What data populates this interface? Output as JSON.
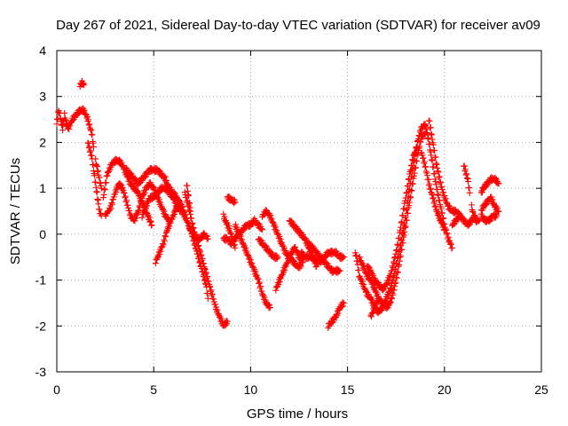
{
  "chart_data": {
    "type": "scatter",
    "title": "Day 267 of 2021, Sidereal Day-to-day VTEC variation (SDTVAR) for receiver av09",
    "xlabel": "GPS time / hours",
    "ylabel": "SDTVAR / TECUs",
    "xlim": [
      0,
      25
    ],
    "ylim": [
      -3,
      4
    ],
    "grid": true,
    "marker": "+",
    "series_color": "#ff0000",
    "xticks": [
      "0",
      "5",
      "10",
      "15",
      "20",
      "25"
    ],
    "yticks": [
      "-3",
      "-2",
      "-1",
      "0",
      "1",
      "2",
      "3",
      "4"
    ],
    "segments": [
      [
        [
          0.0,
          2.4
        ],
        [
          0.1,
          2.7
        ],
        [
          0.2,
          2.5
        ],
        [
          0.3,
          2.3
        ],
        [
          0.4,
          2.6
        ],
        [
          0.5,
          2.4
        ],
        [
          0.6,
          2.3
        ],
        [
          0.8,
          2.5
        ],
        [
          1.0,
          2.6
        ],
        [
          1.2,
          2.7
        ],
        [
          1.4,
          2.7
        ],
        [
          1.6,
          2.5
        ],
        [
          1.8,
          2.2
        ],
        [
          1.9,
          1.9
        ]
      ],
      [
        [
          1.2,
          3.25
        ],
        [
          1.3,
          3.3
        ],
        [
          1.4,
          3.25
        ]
      ],
      [
        [
          1.6,
          2.0
        ],
        [
          1.8,
          1.7
        ],
        [
          1.9,
          1.4
        ],
        [
          2.0,
          1.1
        ],
        [
          2.1,
          0.8
        ],
        [
          2.2,
          0.5
        ],
        [
          2.3,
          0.4
        ]
      ],
      [
        [
          2.0,
          1.6
        ],
        [
          2.1,
          1.4
        ],
        [
          2.2,
          1.2
        ],
        [
          2.3,
          1.0
        ]
      ],
      [
        [
          2.4,
          0.8
        ],
        [
          2.6,
          1.3
        ],
        [
          2.8,
          1.5
        ],
        [
          3.0,
          1.6
        ],
        [
          3.2,
          1.6
        ],
        [
          3.4,
          1.5
        ],
        [
          3.6,
          1.3
        ],
        [
          3.8,
          1.1
        ],
        [
          4.0,
          1.0
        ],
        [
          4.2,
          0.9
        ],
        [
          4.4,
          0.7
        ],
        [
          4.6,
          0.5
        ],
        [
          4.8,
          0.3
        ],
        [
          4.9,
          0.2
        ]
      ],
      [
        [
          2.5,
          0.4
        ],
        [
          2.8,
          0.6
        ],
        [
          3.0,
          0.9
        ],
        [
          3.2,
          1.1
        ],
        [
          3.4,
          1.0
        ],
        [
          3.6,
          0.7
        ],
        [
          3.8,
          0.4
        ],
        [
          4.0,
          0.3
        ],
        [
          4.2,
          0.5
        ],
        [
          4.4,
          0.8
        ],
        [
          4.6,
          1.0
        ],
        [
          4.8,
          1.1
        ],
        [
          5.0,
          1.0
        ],
        [
          5.2,
          0.8
        ],
        [
          5.4,
          0.6
        ],
        [
          5.6,
          0.4
        ],
        [
          5.8,
          0.3
        ]
      ],
      [
        [
          3.6,
          1.4
        ],
        [
          3.8,
          1.3
        ],
        [
          4.0,
          1.2
        ],
        [
          4.2,
          1.1
        ],
        [
          4.4,
          1.2
        ],
        [
          4.6,
          1.3
        ],
        [
          4.8,
          1.4
        ],
        [
          5.0,
          1.4
        ],
        [
          5.2,
          1.4
        ],
        [
          5.4,
          1.3
        ],
        [
          5.6,
          1.2
        ],
        [
          5.8,
          1.0
        ],
        [
          6.0,
          0.9
        ],
        [
          6.2,
          0.8
        ],
        [
          6.4,
          0.6
        ],
        [
          6.6,
          0.4
        ]
      ],
      [
        [
          4.4,
          0.4
        ],
        [
          4.6,
          0.6
        ],
        [
          4.8,
          0.8
        ],
        [
          5.0,
          0.8
        ],
        [
          5.2,
          0.9
        ],
        [
          5.4,
          1.0
        ],
        [
          5.6,
          1.0
        ],
        [
          5.8,
          0.9
        ],
        [
          6.0,
          0.8
        ],
        [
          6.2,
          0.6
        ],
        [
          6.4,
          0.5
        ]
      ],
      [
        [
          5.1,
          -0.6
        ],
        [
          5.3,
          -0.4
        ],
        [
          5.5,
          -0.2
        ],
        [
          5.7,
          0.1
        ],
        [
          5.9,
          0.3
        ],
        [
          6.1,
          0.5
        ],
        [
          6.3,
          0.7
        ],
        [
          6.5,
          0.6
        ]
      ],
      [
        [
          6.5,
          0.5
        ],
        [
          6.7,
          0.3
        ],
        [
          6.9,
          0.1
        ],
        [
          7.1,
          -0.2
        ],
        [
          7.3,
          -0.5
        ],
        [
          7.5,
          -0.8
        ],
        [
          7.7,
          -1.1
        ],
        [
          7.8,
          -1.4
        ]
      ],
      [
        [
          6.6,
          0.9
        ],
        [
          6.8,
          0.6
        ],
        [
          7.0,
          0.2
        ],
        [
          7.2,
          -0.1
        ],
        [
          7.4,
          -0.4
        ],
        [
          7.6,
          -0.7
        ],
        [
          7.8,
          -1.0
        ],
        [
          8.0,
          -1.3
        ],
        [
          8.2,
          -1.6
        ],
        [
          8.4,
          -1.8
        ],
        [
          8.6,
          -2.0
        ],
        [
          8.8,
          -1.9
        ]
      ],
      [
        [
          6.8,
          0.2
        ],
        [
          7.0,
          0.0
        ],
        [
          7.2,
          -0.1
        ],
        [
          7.4,
          -0.1
        ],
        [
          7.6,
          0.0
        ],
        [
          7.8,
          -0.1
        ]
      ],
      [
        [
          6.7,
          1.1
        ],
        [
          6.8,
          0.8
        ],
        [
          6.9,
          0.5
        ]
      ],
      [
        [
          8.6,
          0.4
        ],
        [
          8.8,
          0.2
        ],
        [
          9.0,
          0.0
        ],
        [
          9.2,
          -0.3
        ]
      ],
      [
        [
          8.8,
          0.8
        ],
        [
          9.0,
          0.75
        ],
        [
          9.2,
          0.7
        ]
      ],
      [
        [
          8.6,
          -0.1
        ],
        [
          8.8,
          -0.1
        ],
        [
          9.0,
          -0.2
        ],
        [
          9.2,
          -0.1
        ],
        [
          9.4,
          0.0
        ],
        [
          9.6,
          0.1
        ],
        [
          9.8,
          0.2
        ],
        [
          10.0,
          0.2
        ],
        [
          10.2,
          0.3
        ],
        [
          10.4,
          0.2
        ],
        [
          10.6,
          0.1
        ]
      ],
      [
        [
          9.2,
          0.2
        ],
        [
          9.4,
          0.0
        ],
        [
          9.6,
          -0.2
        ],
        [
          9.8,
          -0.4
        ],
        [
          10.0,
          -0.6
        ],
        [
          10.2,
          -0.8
        ],
        [
          10.4,
          -1.0
        ],
        [
          10.6,
          -1.3
        ],
        [
          10.8,
          -1.5
        ],
        [
          11.0,
          -1.6
        ]
      ],
      [
        [
          10.6,
          0.4
        ],
        [
          10.8,
          0.5
        ],
        [
          11.0,
          0.4
        ],
        [
          11.2,
          0.2
        ],
        [
          11.4,
          0.0
        ],
        [
          11.6,
          -0.2
        ],
        [
          11.8,
          -0.4
        ],
        [
          12.0,
          -0.5
        ],
        [
          12.2,
          -0.6
        ],
        [
          12.4,
          -0.7
        ],
        [
          12.6,
          -0.7
        ]
      ],
      [
        [
          10.4,
          -0.1
        ],
        [
          10.6,
          -0.2
        ],
        [
          10.8,
          -0.3
        ],
        [
          11.0,
          -0.4
        ],
        [
          11.2,
          -0.5
        ],
        [
          11.4,
          -0.5
        ]
      ],
      [
        [
          11.3,
          -1.2
        ],
        [
          11.5,
          -1.0
        ],
        [
          11.7,
          -0.8
        ],
        [
          11.9,
          -0.6
        ],
        [
          12.1,
          -0.4
        ],
        [
          12.3,
          -0.3
        ],
        [
          12.5,
          -0.5
        ],
        [
          12.7,
          -0.6
        ]
      ],
      [
        [
          12.0,
          0.3
        ],
        [
          12.2,
          0.2
        ],
        [
          12.4,
          0.1
        ],
        [
          12.6,
          0.0
        ],
        [
          12.8,
          -0.1
        ],
        [
          13.0,
          -0.3
        ],
        [
          13.2,
          -0.5
        ],
        [
          13.4,
          -0.7
        ]
      ],
      [
        [
          12.6,
          -0.4
        ],
        [
          12.8,
          -0.5
        ],
        [
          13.0,
          -0.5
        ],
        [
          13.2,
          -0.5
        ],
        [
          13.4,
          -0.6
        ],
        [
          13.6,
          -0.6
        ],
        [
          13.8,
          -0.5
        ],
        [
          14.0,
          -0.4
        ],
        [
          14.2,
          -0.4
        ],
        [
          14.4,
          -0.4
        ],
        [
          14.6,
          -0.5
        ],
        [
          14.8,
          -0.5
        ]
      ],
      [
        [
          13.0,
          -0.2
        ],
        [
          13.2,
          -0.3
        ],
        [
          13.4,
          -0.4
        ],
        [
          13.6,
          -0.5
        ],
        [
          13.8,
          -0.6
        ],
        [
          14.0,
          -0.7
        ],
        [
          14.2,
          -0.8
        ],
        [
          14.4,
          -0.8
        ],
        [
          14.6,
          -0.8
        ]
      ],
      [
        [
          14.0,
          -2.0
        ],
        [
          14.2,
          -1.9
        ],
        [
          14.4,
          -1.8
        ],
        [
          14.6,
          -1.6
        ],
        [
          14.8,
          -1.5
        ]
      ],
      [
        [
          15.4,
          -0.4
        ],
        [
          15.5,
          -0.6
        ],
        [
          15.6,
          -0.9
        ],
        [
          15.8,
          -1.1
        ],
        [
          16.0,
          -1.3
        ],
        [
          16.2,
          -1.4
        ],
        [
          16.4,
          -1.6
        ],
        [
          16.6,
          -1.7
        ],
        [
          16.8,
          -1.6
        ],
        [
          17.0,
          -1.4
        ],
        [
          17.2,
          -1.2
        ],
        [
          17.4,
          -0.9
        ],
        [
          17.6,
          -0.5
        ],
        [
          17.8,
          -0.1
        ],
        [
          18.0,
          0.4
        ],
        [
          18.2,
          1.0
        ],
        [
          18.4,
          1.5
        ],
        [
          18.6,
          2.0
        ],
        [
          18.8,
          2.3
        ],
        [
          19.0,
          2.4
        ]
      ],
      [
        [
          15.6,
          -0.5
        ],
        [
          15.8,
          -0.7
        ],
        [
          16.0,
          -0.9
        ],
        [
          16.2,
          -1.0
        ],
        [
          16.4,
          -1.2
        ],
        [
          16.6,
          -1.4
        ],
        [
          16.8,
          -1.5
        ],
        [
          17.0,
          -1.6
        ],
        [
          17.2,
          -1.5
        ],
        [
          17.4,
          -1.2
        ],
        [
          17.6,
          -0.8
        ],
        [
          17.8,
          -0.3
        ],
        [
          18.0,
          0.2
        ],
        [
          18.2,
          0.7
        ],
        [
          18.4,
          1.2
        ],
        [
          18.6,
          1.7
        ],
        [
          18.8,
          2.1
        ],
        [
          19.0,
          2.2
        ]
      ],
      [
        [
          16.0,
          -0.7
        ],
        [
          16.2,
          -0.8
        ],
        [
          16.4,
          -1.0
        ],
        [
          16.6,
          -1.1
        ],
        [
          16.8,
          -1.2
        ],
        [
          17.0,
          -1.1
        ],
        [
          17.2,
          -0.9
        ],
        [
          17.4,
          -0.6
        ],
        [
          17.6,
          -0.2
        ],
        [
          17.8,
          0.3
        ],
        [
          18.0,
          0.8
        ],
        [
          18.2,
          1.3
        ],
        [
          18.4,
          1.7
        ],
        [
          18.6,
          1.9
        ]
      ],
      [
        [
          16.2,
          -1.8
        ],
        [
          16.4,
          -1.6
        ],
        [
          16.6,
          -1.4
        ]
      ],
      [
        [
          19.0,
          2.4
        ],
        [
          19.2,
          2.0
        ],
        [
          19.4,
          1.5
        ],
        [
          19.6,
          1.0
        ],
        [
          19.8,
          0.6
        ],
        [
          20.0,
          0.2
        ],
        [
          20.2,
          -0.1
        ],
        [
          20.4,
          -0.3
        ]
      ],
      [
        [
          18.8,
          1.8
        ],
        [
          19.0,
          1.5
        ],
        [
          19.2,
          1.1
        ],
        [
          19.4,
          0.8
        ],
        [
          19.6,
          0.5
        ],
        [
          19.8,
          0.3
        ],
        [
          20.0,
          0.1
        ]
      ],
      [
        [
          19.2,
          2.5
        ],
        [
          19.4,
          2.0
        ],
        [
          19.6,
          1.5
        ],
        [
          19.8,
          1.1
        ],
        [
          20.0,
          0.8
        ],
        [
          20.2,
          0.6
        ],
        [
          20.4,
          0.5
        ],
        [
          20.6,
          0.5
        ],
        [
          20.8,
          0.4
        ]
      ],
      [
        [
          20.4,
          0.2
        ],
        [
          20.6,
          0.3
        ],
        [
          20.8,
          0.4
        ],
        [
          21.0,
          0.3
        ],
        [
          21.2,
          0.2
        ],
        [
          21.4,
          0.3
        ],
        [
          21.6,
          0.4
        ]
      ],
      [
        [
          21.0,
          1.5
        ],
        [
          21.2,
          1.2
        ],
        [
          21.3,
          0.9
        ]
      ],
      [
        [
          21.4,
          0.6
        ],
        [
          21.5,
          0.4
        ],
        [
          21.6,
          0.3
        ],
        [
          21.8,
          0.3
        ]
      ],
      [
        [
          21.9,
          0.9
        ],
        [
          22.0,
          1.0
        ],
        [
          22.2,
          1.1
        ],
        [
          22.4,
          1.2
        ],
        [
          22.6,
          1.2
        ],
        [
          22.8,
          1.1
        ]
      ],
      [
        [
          21.9,
          0.5
        ],
        [
          22.0,
          0.6
        ],
        [
          22.2,
          0.7
        ],
        [
          22.4,
          0.8
        ],
        [
          22.6,
          0.6
        ],
        [
          22.8,
          0.5
        ]
      ],
      [
        [
          21.9,
          0.4
        ],
        [
          22.1,
          0.3
        ],
        [
          22.3,
          0.3
        ],
        [
          22.5,
          0.4
        ],
        [
          22.7,
          0.4
        ]
      ]
    ]
  }
}
